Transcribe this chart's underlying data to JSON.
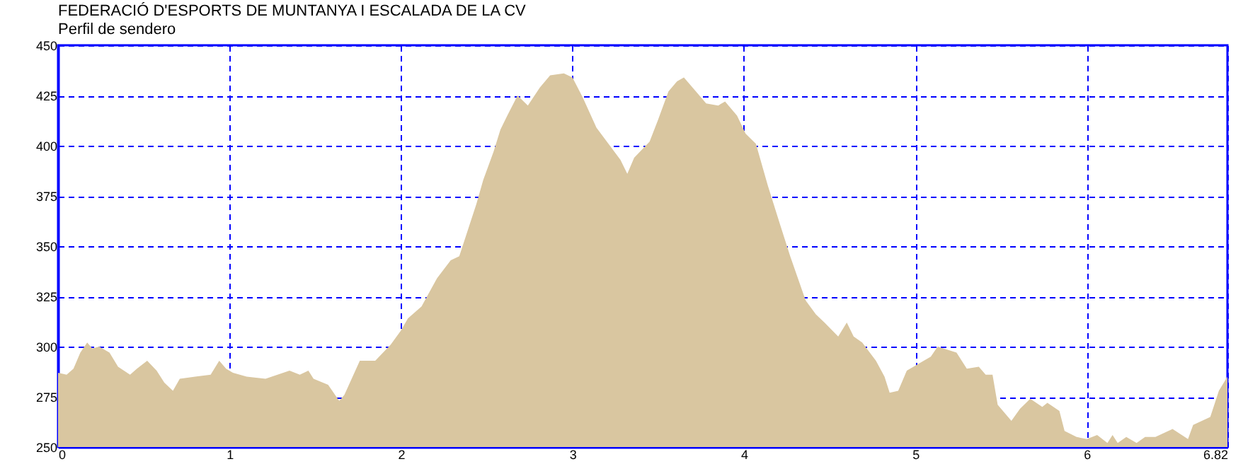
{
  "chart_data": {
    "type": "area",
    "title": "FEDERACIÓ D'ESPORTS DE MUNTANYA I ESCALADA DE LA CV",
    "subtitle": "Perfil de sendero",
    "x": [
      0,
      0.05,
      0.09,
      0.13,
      0.17,
      0.2,
      0.24,
      0.3,
      0.35,
      0.42,
      0.46,
      0.52,
      0.575,
      0.62,
      0.67,
      0.71,
      0.8,
      0.89,
      0.94,
      0.98,
      1.02,
      1.1,
      1.21,
      1.35,
      1.41,
      1.46,
      1.49,
      1.575,
      1.64,
      1.67,
      1.76,
      1.85,
      1.94,
      2.0,
      2.04,
      2.12,
      2.21,
      2.29,
      2.34,
      2.39,
      2.44,
      2.48,
      2.54,
      2.58,
      2.62,
      2.68,
      2.74,
      2.81,
      2.87,
      2.95,
      3.0,
      3.06,
      3.14,
      3.21,
      3.28,
      3.32,
      3.36,
      3.45,
      3.5,
      3.56,
      3.61,
      3.65,
      3.72,
      3.78,
      3.85,
      3.89,
      3.96,
      4.01,
      4.07,
      4.14,
      4.21,
      4.27,
      4.36,
      4.42,
      4.47,
      4.55,
      4.6,
      4.64,
      4.69,
      4.77,
      4.82,
      4.85,
      4.9,
      4.95,
      5.01,
      5.09,
      5.13,
      5.24,
      5.3,
      5.37,
      5.41,
      5.45,
      5.48,
      5.56,
      5.61,
      5.67,
      5.74,
      5.77,
      5.84,
      5.87,
      5.94,
      6.0,
      6.06,
      6.12,
      6.15,
      6.18,
      6.23,
      6.29,
      6.34,
      6.4,
      6.5,
      6.59,
      6.62,
      6.72,
      6.77,
      6.82
    ],
    "series": [
      {
        "color": "#d9c6a0",
        "values": [
          287,
          286,
          289,
          297,
          302,
          299,
          300,
          297,
          290,
          286,
          289,
          293,
          288,
          282,
          278,
          284,
          285,
          286,
          293,
          289,
          287,
          285,
          284,
          288,
          286,
          288,
          284,
          281,
          273,
          276,
          293,
          293,
          301,
          308,
          314,
          320,
          334,
          343,
          345,
          358,
          371,
          383,
          397,
          408,
          415,
          425,
          420,
          429,
          435,
          436,
          434,
          424,
          409,
          401,
          393,
          386,
          394,
          402,
          413,
          427,
          432,
          434,
          427,
          421,
          420,
          422,
          415,
          406,
          401,
          380,
          361,
          345,
          323,
          316,
          312,
          305,
          312,
          305,
          302,
          293,
          285,
          277,
          278,
          288,
          291,
          295,
          300,
          297,
          289,
          290,
          286,
          286,
          271,
          263,
          269,
          274,
          270,
          272,
          268,
          258,
          255,
          254,
          256,
          252,
          256,
          252,
          255,
          252,
          255,
          255,
          259,
          254,
          261,
          265,
          278,
          285
        ]
      }
    ],
    "xlim": [
      0,
      6.82
    ],
    "xticks": [
      0,
      1,
      2,
      3,
      4,
      5,
      6,
      6.82
    ],
    "ylim": [
      250,
      450
    ],
    "yticks": [
      250,
      275,
      300,
      325,
      350,
      375,
      400,
      425,
      450
    ],
    "grid": true
  }
}
